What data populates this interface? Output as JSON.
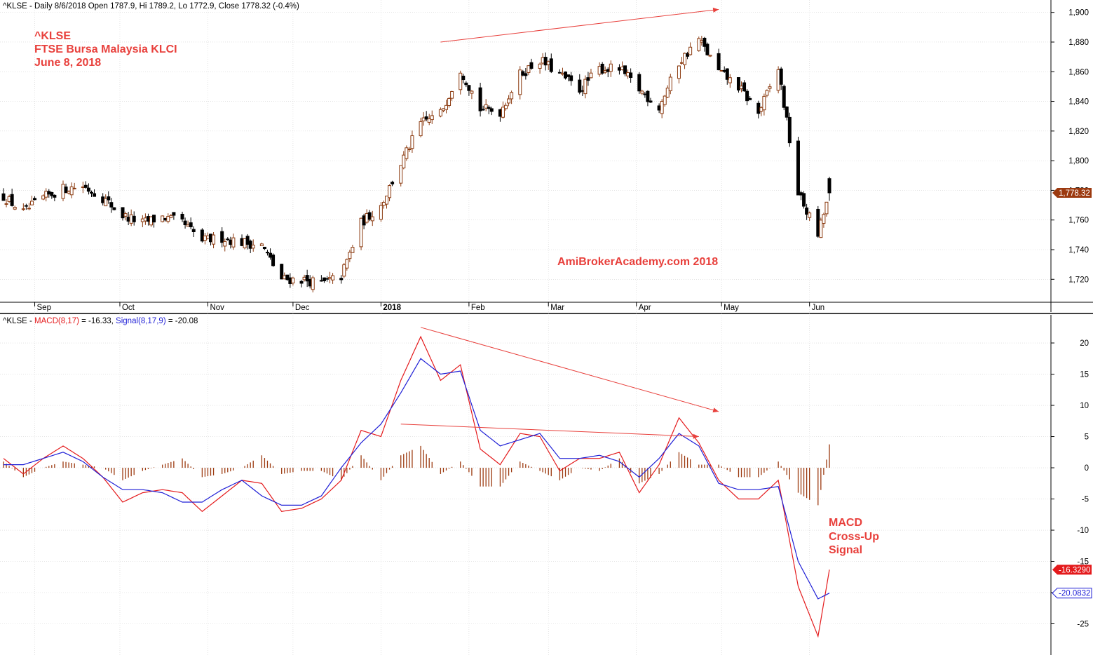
{
  "price_header": "^KLSE - Daily 8/6/2018 Open 1787.9, Hi 1789.2, Lo 1772.9, Close 1778.32 (-0.4%)",
  "macd_header": {
    "prefix": "^KLSE - ",
    "macd_label": "MACD(8,17)",
    "macd_value": " = -16.33, ",
    "signal_label": "Signal(8,17,9)",
    "signal_value": " = -20.08"
  },
  "annotations": {
    "title_line1": "^KLSE",
    "title_line2": "FTSE Bursa Malaysia KLCI",
    "title_line3": "June 8, 2018",
    "watermark": "AmiBrokerAcademy.com  2018",
    "macd_note_line1": "MACD",
    "macd_note_line2": "Cross-Up",
    "macd_note_line3": "Signal"
  },
  "price_tag": "1,778.32",
  "macd_tag": "-16.3290",
  "signal_tag": "-20.0832",
  "colors": {
    "up_candle": "#8b3a0f",
    "down_candle": "#000000",
    "macd_line": "#e41a1c",
    "signal_line": "#1f1fd6",
    "histogram": "#9c3a10",
    "annotation": "#e8403c",
    "grid": "#d4d4d4",
    "price_tag_bg": "#9c3a10",
    "macd_tag_bg": "#e41a1c",
    "signal_tag_bg": "#1f1fd6"
  },
  "chart_data": [
    {
      "type": "candlestick",
      "symbol": "^KLSE",
      "period": "Daily",
      "x_range": [
        "2017-08-21",
        "2018-06-08"
      ],
      "x_tick_labels": [
        "Sep",
        "Oct",
        "Nov",
        "Dec",
        "2018",
        "Feb",
        "Mar",
        "Apr",
        "May",
        "Jun"
      ],
      "y_ticks": [
        1720,
        1740,
        1760,
        1780,
        1800,
        1820,
        1840,
        1860,
        1880,
        1900
      ],
      "y_tick_labels": [
        "1,720",
        "1,740",
        "1,760",
        "1,780",
        "1,800",
        "1,820",
        "1,840",
        "1,860",
        "1,880",
        "1,900"
      ],
      "ylim": [
        1705,
        1906
      ],
      "last_bar": {
        "date": "2018-06-08",
        "open": 1787.9,
        "high": 1789.2,
        "low": 1772.9,
        "close": 1778.32
      },
      "close_path": [
        [
          "2017-08-21",
          1776
        ],
        [
          "2017-08-28",
          1765
        ],
        [
          "2017-09-04",
          1775
        ],
        [
          "2017-09-11",
          1781
        ],
        [
          "2017-09-18",
          1783
        ],
        [
          "2017-09-25",
          1775
        ],
        [
          "2017-10-02",
          1763
        ],
        [
          "2017-10-09",
          1758
        ],
        [
          "2017-10-16",
          1762
        ],
        [
          "2017-10-23",
          1758
        ],
        [
          "2017-10-30",
          1746
        ],
        [
          "2017-11-06",
          1748
        ],
        [
          "2017-11-13",
          1745
        ],
        [
          "2017-11-20",
          1743
        ],
        [
          "2017-11-27",
          1720
        ],
        [
          "2017-12-04",
          1720
        ],
        [
          "2017-12-11",
          1717
        ],
        [
          "2017-12-18",
          1722
        ],
        [
          "2017-12-25",
          1758
        ],
        [
          "2018-01-01",
          1770
        ],
        [
          "2018-01-08",
          1798
        ],
        [
          "2018-01-15",
          1825
        ],
        [
          "2018-01-22",
          1832
        ],
        [
          "2018-01-29",
          1862
        ],
        [
          "2018-02-05",
          1835
        ],
        [
          "2018-02-12",
          1833
        ],
        [
          "2018-02-19",
          1858
        ],
        [
          "2018-02-26",
          1868
        ],
        [
          "2018-03-05",
          1858
        ],
        [
          "2018-03-12",
          1848
        ],
        [
          "2018-03-19",
          1862
        ],
        [
          "2018-03-26",
          1862
        ],
        [
          "2018-04-02",
          1848
        ],
        [
          "2018-04-09",
          1836
        ],
        [
          "2018-04-16",
          1866
        ],
        [
          "2018-04-23",
          1882
        ],
        [
          "2018-04-30",
          1860
        ],
        [
          "2018-05-07",
          1850
        ],
        [
          "2018-05-14",
          1832
        ],
        [
          "2018-05-21",
          1862
        ],
        [
          "2018-05-28",
          1778
        ],
        [
          "2018-06-04",
          1750
        ],
        [
          "2018-06-08",
          1778.32
        ]
      ],
      "annotation_lines": [
        {
          "from": [
            "2018-01-22",
            1880
          ],
          "to": [
            "2018-04-30",
            1902
          ]
        }
      ]
    },
    {
      "type": "line",
      "indicator": "MACD",
      "series": [
        {
          "name": "MACD(8,17)",
          "last": -16.33
        },
        {
          "name": "Signal(8,17,9)",
          "last": -20.08
        }
      ],
      "histogram_name": "MACD - Signal",
      "y_ticks": [
        -25,
        -20,
        -15,
        -10,
        -5,
        0,
        5,
        10,
        15,
        20
      ],
      "ylim": [
        -30,
        24.5
      ],
      "macd_path": [
        [
          "2017-08-21",
          1.5
        ],
        [
          "2017-08-28",
          -1.0
        ],
        [
          "2017-09-04",
          1.5
        ],
        [
          "2017-09-11",
          3.5
        ],
        [
          "2017-09-18",
          1.5
        ],
        [
          "2017-09-25",
          -1.5
        ],
        [
          "2017-10-02",
          -5.5
        ],
        [
          "2017-10-09",
          -4.0
        ],
        [
          "2017-10-16",
          -3.5
        ],
        [
          "2017-10-23",
          -4.0
        ],
        [
          "2017-10-30",
          -7.0
        ],
        [
          "2017-11-06",
          -4.5
        ],
        [
          "2017-11-13",
          -2.0
        ],
        [
          "2017-11-20",
          -2.5
        ],
        [
          "2017-11-27",
          -7.0
        ],
        [
          "2017-12-04",
          -6.5
        ],
        [
          "2017-12-11",
          -5.0
        ],
        [
          "2017-12-18",
          -2.0
        ],
        [
          "2017-12-25",
          6.0
        ],
        [
          "2018-01-01",
          5.0
        ],
        [
          "2018-01-08",
          14.0
        ],
        [
          "2018-01-15",
          21.0
        ],
        [
          "2018-01-22",
          14.0
        ],
        [
          "2018-01-29",
          16.5
        ],
        [
          "2018-02-05",
          3.0
        ],
        [
          "2018-02-12",
          0.5
        ],
        [
          "2018-02-19",
          5.5
        ],
        [
          "2018-02-26",
          5.0
        ],
        [
          "2018-03-05",
          -0.5
        ],
        [
          "2018-03-12",
          1.5
        ],
        [
          "2018-03-19",
          1.5
        ],
        [
          "2018-03-26",
          2.5
        ],
        [
          "2018-04-02",
          -4.0
        ],
        [
          "2018-04-09",
          0.5
        ],
        [
          "2018-04-16",
          8.0
        ],
        [
          "2018-04-23",
          4.0
        ],
        [
          "2018-04-30",
          -2.0
        ],
        [
          "2018-05-07",
          -5.0
        ],
        [
          "2018-05-14",
          -5.0
        ],
        [
          "2018-05-21",
          -2.0
        ],
        [
          "2018-05-28",
          -19.0
        ],
        [
          "2018-06-04",
          -27.0
        ],
        [
          "2018-06-08",
          -16.33
        ]
      ],
      "signal_path": [
        [
          "2017-08-21",
          0.5
        ],
        [
          "2017-08-28",
          0.5
        ],
        [
          "2017-09-04",
          1.5
        ],
        [
          "2017-09-11",
          2.5
        ],
        [
          "2017-09-18",
          1.0
        ],
        [
          "2017-09-25",
          -1.5
        ],
        [
          "2017-10-02",
          -3.5
        ],
        [
          "2017-10-09",
          -3.5
        ],
        [
          "2017-10-16",
          -4.0
        ],
        [
          "2017-10-23",
          -5.5
        ],
        [
          "2017-10-30",
          -5.5
        ],
        [
          "2017-11-06",
          -3.5
        ],
        [
          "2017-11-13",
          -2.0
        ],
        [
          "2017-11-20",
          -4.5
        ],
        [
          "2017-11-27",
          -6.0
        ],
        [
          "2017-12-04",
          -6.0
        ],
        [
          "2017-12-11",
          -4.5
        ],
        [
          "2017-12-18",
          0.0
        ],
        [
          "2017-12-25",
          4.0
        ],
        [
          "2018-01-01",
          7.0
        ],
        [
          "2018-01-08",
          12.0
        ],
        [
          "2018-01-15",
          17.5
        ],
        [
          "2018-01-22",
          15.0
        ],
        [
          "2018-01-29",
          15.5
        ],
        [
          "2018-02-05",
          6.0
        ],
        [
          "2018-02-12",
          3.5
        ],
        [
          "2018-02-19",
          4.5
        ],
        [
          "2018-02-26",
          5.5
        ],
        [
          "2018-03-05",
          1.5
        ],
        [
          "2018-03-12",
          1.5
        ],
        [
          "2018-03-19",
          2.0
        ],
        [
          "2018-03-26",
          1.0
        ],
        [
          "2018-04-02",
          -1.5
        ],
        [
          "2018-04-09",
          1.5
        ],
        [
          "2018-04-16",
          5.5
        ],
        [
          "2018-04-23",
          3.5
        ],
        [
          "2018-04-30",
          -2.5
        ],
        [
          "2018-05-07",
          -3.5
        ],
        [
          "2018-05-14",
          -3.5
        ],
        [
          "2018-05-21",
          -3.0
        ],
        [
          "2018-05-28",
          -15.0
        ],
        [
          "2018-06-04",
          -21.0
        ],
        [
          "2018-06-08",
          -20.08
        ]
      ],
      "annotation_lines": [
        {
          "from": [
            "2018-01-15",
            22.5
          ],
          "to": [
            "2018-04-30",
            9.0
          ]
        },
        {
          "from": [
            "2018-01-08",
            7.0
          ],
          "to": [
            "2018-04-23",
            5.0
          ]
        }
      ]
    }
  ]
}
